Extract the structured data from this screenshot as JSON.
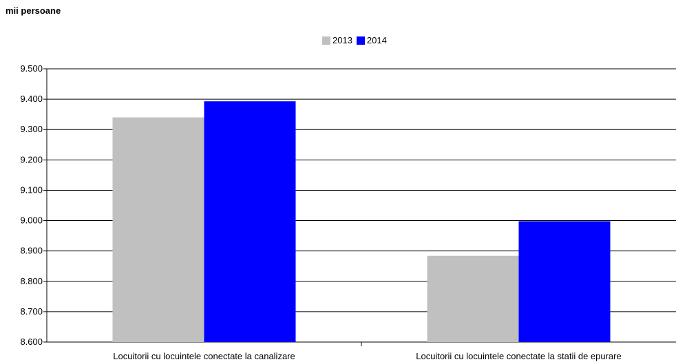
{
  "unit_label": "mii persoane",
  "colors": {
    "2013": "#c0c0c0",
    "2014": "#0000ff"
  },
  "chart_data": {
    "type": "bar",
    "title": "",
    "ylabel": "mii persoane",
    "xlabel": "",
    "ylim": [
      8600,
      9500
    ],
    "yticks": [
      8600,
      8700,
      8800,
      8900,
      9000,
      9100,
      9200,
      9300,
      9400,
      9500
    ],
    "ytick_labels": [
      "8.600",
      "8.700",
      "8.800",
      "8.900",
      "9.000",
      "9.100",
      "9.200",
      "9.300",
      "9.400",
      "9.500"
    ],
    "categories": [
      "Locuitorii cu locuintele conectate la canalizare",
      "Locuitorii cu locuintele conectate la statii de epurare"
    ],
    "series": [
      {
        "name": "2013",
        "values": [
          9340,
          8884
        ]
      },
      {
        "name": "2014",
        "values": [
          9393,
          8998
        ]
      }
    ],
    "grid": true,
    "legend": "top-center"
  }
}
